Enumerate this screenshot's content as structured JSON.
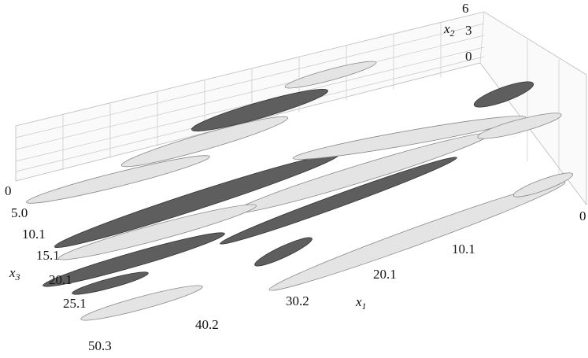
{
  "axes": {
    "x1": {
      "label": "x",
      "subscript": "1",
      "ticks": [
        "0",
        "10.1",
        "20.1",
        "30.2",
        "40.2",
        "50.3"
      ]
    },
    "x2": {
      "label": "x",
      "subscript": "2",
      "ticks": [
        "6",
        "3",
        "0"
      ]
    },
    "x3": {
      "label": "x",
      "subscript": "3",
      "ticks": [
        "0",
        "5.0",
        "10.1",
        "15.1",
        "20.1",
        "25.1"
      ]
    }
  }
}
